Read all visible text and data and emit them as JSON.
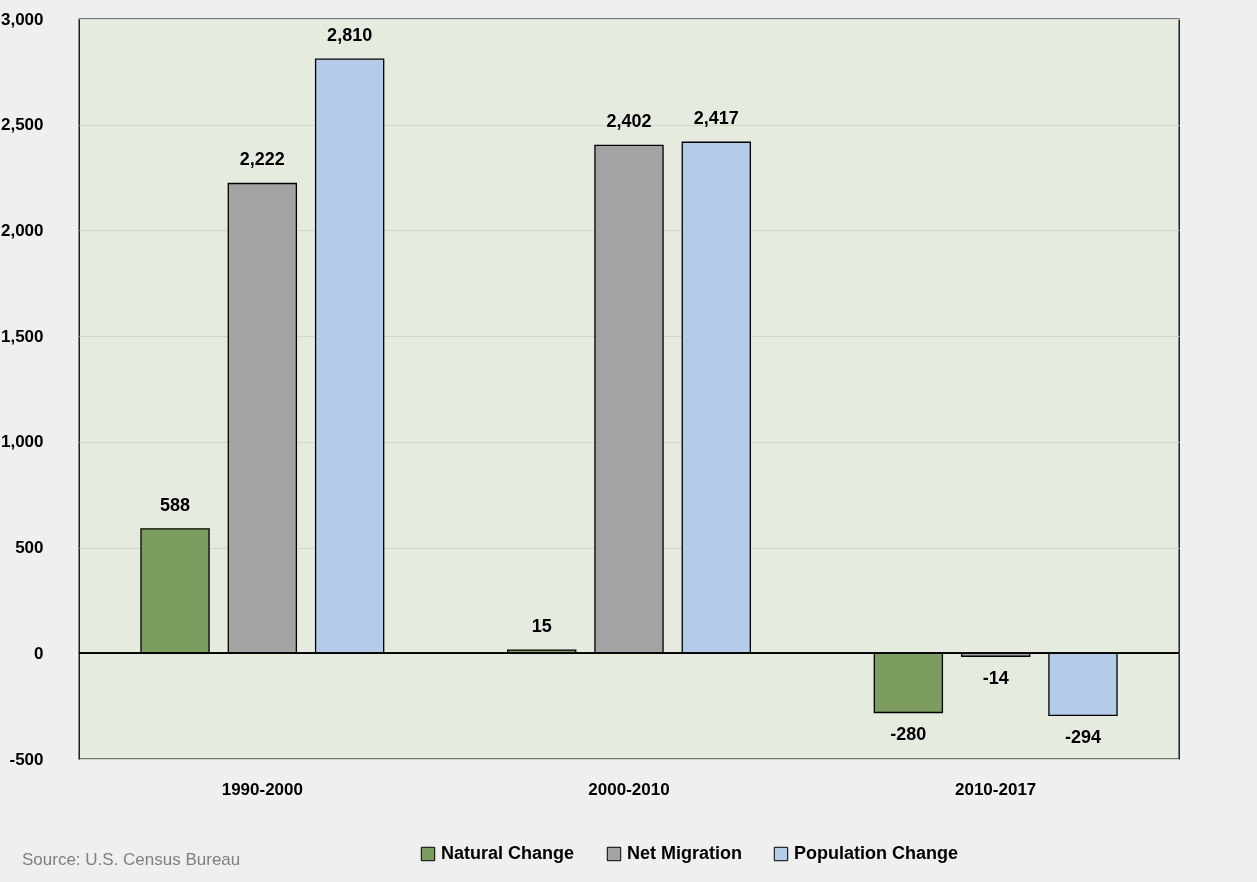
{
  "chart_data": {
    "type": "bar",
    "categories": [
      "1990-2000",
      "2000-2010",
      "2010-2017"
    ],
    "series": [
      {
        "name": "Natural Change",
        "color": "#7d9c5f",
        "values": [
          588,
          15,
          -280
        ],
        "value_labels": [
          "588",
          "15",
          "-280"
        ]
      },
      {
        "name": "Net Migration",
        "color": "#a3a3a3",
        "values": [
          2222,
          2402,
          -14
        ],
        "value_labels": [
          "2,222",
          "2,402",
          "-14"
        ]
      },
      {
        "name": "Population Change",
        "color": "#b4cbea",
        "values": [
          2810,
          2417,
          -294
        ],
        "value_labels": [
          "2,810",
          "2,417",
          "-294"
        ]
      }
    ],
    "ylim": [
      -500,
      3000
    ],
    "yticks": [
      {
        "value": -500,
        "label": "-500"
      },
      0,
      500,
      {
        "value": 1000,
        "label": "1,000"
      },
      {
        "value": 1500,
        "label": "1,500"
      },
      {
        "value": 2000,
        "label": "2,000"
      },
      {
        "value": 2500,
        "label": "2,500"
      },
      {
        "value": 3000,
        "label": "3,000"
      }
    ],
    "grid": "y",
    "legend": "bottom",
    "annotations": [
      "Source: U.S. Census Bureau"
    ]
  }
}
